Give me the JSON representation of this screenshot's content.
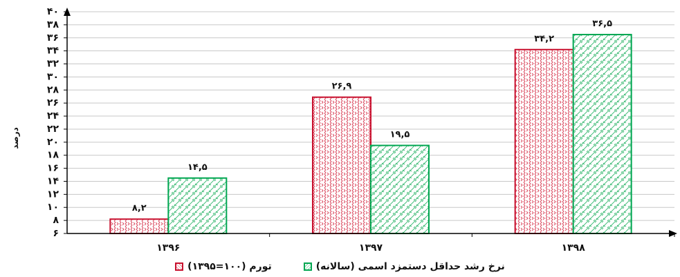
{
  "chart_data": {
    "type": "bar",
    "title": "",
    "ylabel": "درصد",
    "xlabel": "",
    "ylim": [
      6,
      40
    ],
    "yticks": [
      6,
      8,
      10,
      12,
      14,
      16,
      18,
      20,
      22,
      24,
      26,
      28,
      30,
      32,
      34,
      36,
      38,
      40
    ],
    "ytick_labels": [
      "۶",
      "۸",
      "۱۰",
      "۱۲",
      "۱۴",
      "۱۶",
      "۱۸",
      "۲۰",
      "۲۲",
      "۲۴",
      "۲۶",
      "۲۸",
      "۳۰",
      "۳۲",
      "۳۴",
      "۳۶",
      "۳۸",
      "۴۰"
    ],
    "categories": [
      "۱۳۹۶",
      "۱۳۹۷",
      "۱۳۹۸"
    ],
    "grid": true,
    "legend_position": "bottom",
    "series": [
      {
        "name": "تورم (۱۰۰=۱۳۹۵)",
        "color": "#c8102e",
        "values": [
          8.2,
          26.9,
          34.2
        ],
        "value_labels": [
          "۸,۲",
          "۲۶,۹",
          "۳۴,۲"
        ]
      },
      {
        "name": "نرخ رشد حداقل دستمزد اسمی (سالانه)",
        "color": "#00a651",
        "values": [
          14.5,
          19.5,
          36.5
        ],
        "value_labels": [
          "۱۴,۵",
          "۱۹,۵",
          "۳۶,۵"
        ]
      }
    ]
  }
}
